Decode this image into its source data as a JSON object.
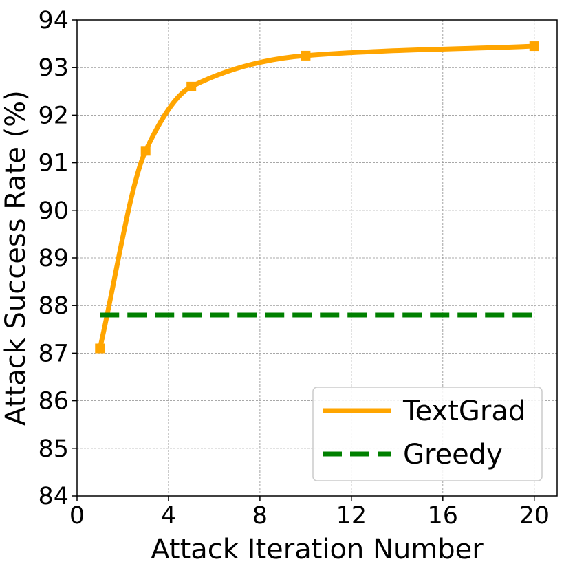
{
  "chart_data": {
    "type": "line",
    "xlabel": "Attack Iteration Number",
    "ylabel": "Attack Success Rate (%)",
    "xlim": [
      0,
      21
    ],
    "ylim": [
      84,
      94
    ],
    "xticks": [
      "0",
      "4",
      "8",
      "12",
      "16",
      "20"
    ],
    "yticks": [
      "84",
      "85",
      "86",
      "87",
      "88",
      "89",
      "90",
      "91",
      "92",
      "93",
      "94"
    ],
    "grid": true,
    "legend_position": "bottom-right",
    "series": [
      {
        "name": "TextGrad",
        "style": "solid",
        "marker": "square",
        "color": "#FFA500",
        "x": [
          1,
          3,
          5,
          10,
          20
        ],
        "y": [
          87.1,
          91.25,
          92.6,
          93.25,
          93.45
        ]
      },
      {
        "name": "Greedy",
        "style": "dashed",
        "marker": "none",
        "color": "#008000",
        "x": [
          1,
          20
        ],
        "y": [
          87.8,
          87.8
        ]
      }
    ]
  }
}
